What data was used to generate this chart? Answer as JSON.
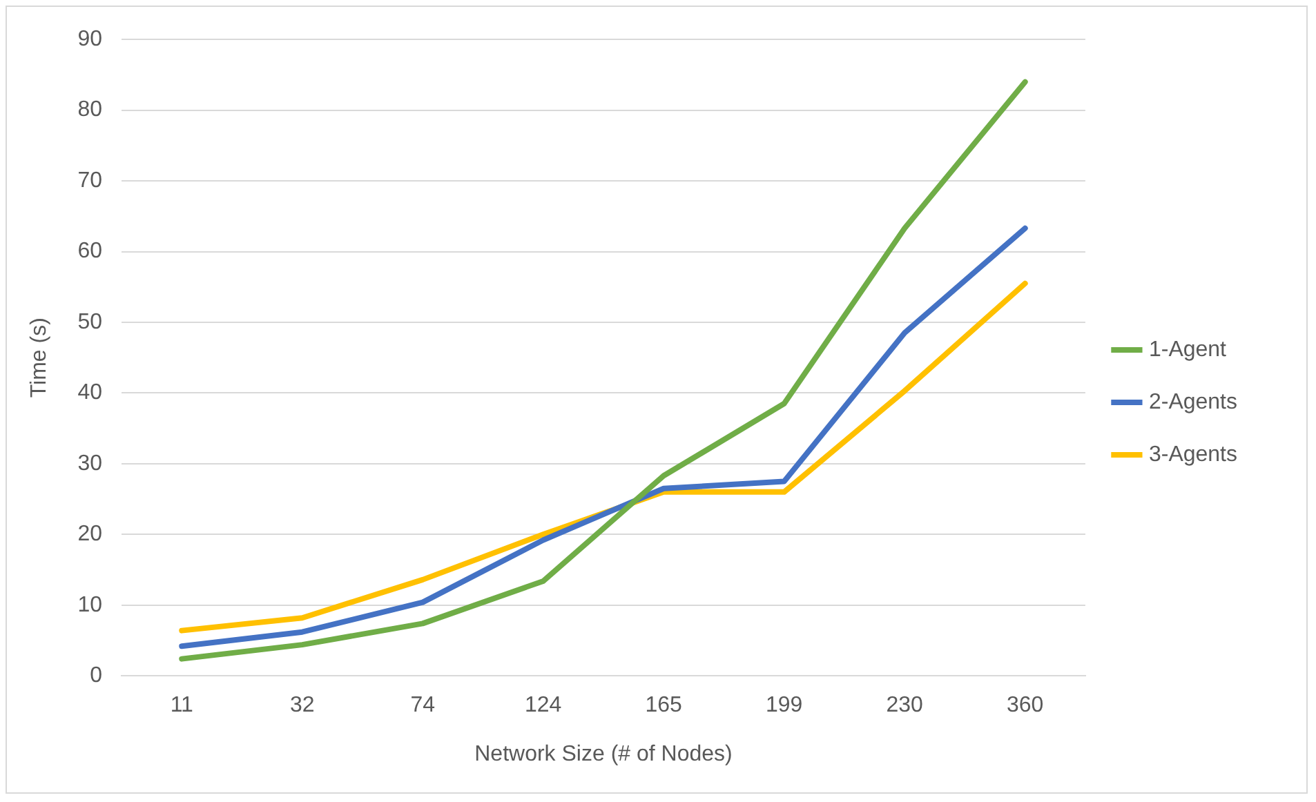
{
  "chart_data": {
    "type": "line",
    "xlabel": "Network Size (# of Nodes)",
    "ylabel": "Time (s)",
    "categories": [
      "11",
      "32",
      "74",
      "124",
      "165",
      "199",
      "230",
      "360"
    ],
    "series": [
      {
        "name": "1-Agent",
        "color": "#70ad47",
        "values": [
          2.4,
          4.4,
          7.4,
          13.4,
          28.3,
          38.5,
          63.3,
          84
        ]
      },
      {
        "name": "2-Agents",
        "color": "#4472c4",
        "values": [
          4.2,
          6.2,
          10.4,
          19.2,
          26.5,
          27.5,
          48.5,
          63.3
        ]
      },
      {
        "name": "3-Agents",
        "color": "#ffc000",
        "values": [
          6.4,
          8.2,
          13.6,
          20,
          26,
          26,
          40.3,
          55.5
        ]
      }
    ],
    "ylim": [
      0,
      90
    ],
    "yticks": [
      0,
      10,
      20,
      30,
      40,
      50,
      60,
      70,
      80,
      90
    ],
    "grid": "y",
    "legend": "right",
    "marker": "none",
    "line_style": "solid"
  }
}
